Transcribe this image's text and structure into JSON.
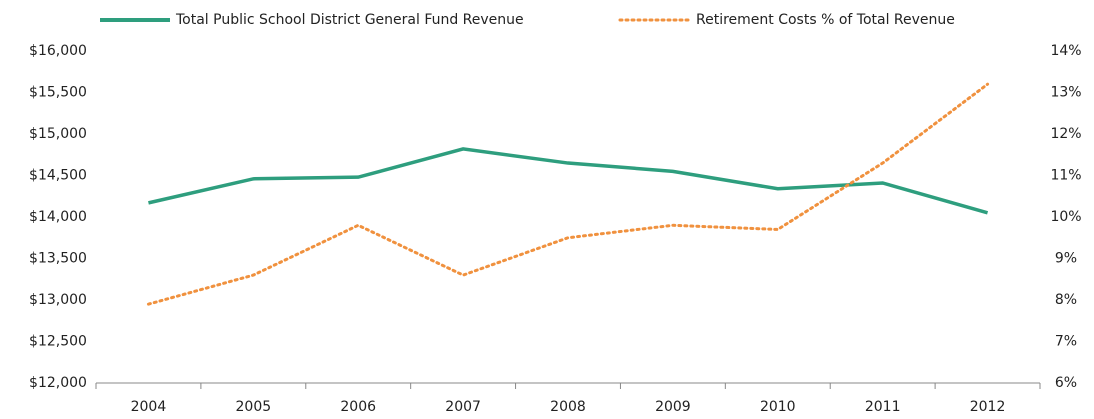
{
  "chart_data": {
    "type": "line",
    "categories": [
      "2004",
      "2005",
      "2006",
      "2007",
      "2008",
      "2009",
      "2010",
      "2011",
      "2012"
    ],
    "series": [
      {
        "name": "Total Public School District General Fund Revenue",
        "color": "#2e9e7e",
        "dash": "solid",
        "values": [
          14170,
          14460,
          14480,
          14820,
          14650,
          14550,
          14340,
          14410,
          14050
        ]
      },
      {
        "name": "Retirement Costs % of Total Revenue",
        "color": "#f0913e",
        "dash": "dotted",
        "axis": "y2",
        "values": [
          7.9,
          8.6,
          9.8,
          8.6,
          9.5,
          9.8,
          9.7,
          11.3,
          13.2
        ]
      }
    ],
    "ylim": [
      12000,
      16000
    ],
    "yticks": [
      {
        "value": 12000,
        "label": "$12,000"
      },
      {
        "value": 12500,
        "label": "$12,500"
      },
      {
        "value": 13000,
        "label": "$13,000"
      },
      {
        "value": 13500,
        "label": "$13,500"
      },
      {
        "value": 14000,
        "label": "$14,000"
      },
      {
        "value": 14500,
        "label": "$14,500"
      },
      {
        "value": 15000,
        "label": "$15,000"
      },
      {
        "value": 15500,
        "label": "$15,500"
      },
      {
        "value": 16000,
        "label": "$16,000"
      }
    ],
    "y2lim": [
      6,
      14
    ],
    "y2ticks": [
      {
        "value": 6,
        "label": "6%"
      },
      {
        "value": 7,
        "label": "7%"
      },
      {
        "value": 8,
        "label": "8%"
      },
      {
        "value": 9,
        "label": "9%"
      },
      {
        "value": 10,
        "label": "10%"
      },
      {
        "value": 11,
        "label": "11%"
      },
      {
        "value": 12,
        "label": "12%"
      },
      {
        "value": 13,
        "label": "13%"
      },
      {
        "value": 14,
        "label": "14%"
      }
    ],
    "grid": false,
    "legend": "top"
  }
}
